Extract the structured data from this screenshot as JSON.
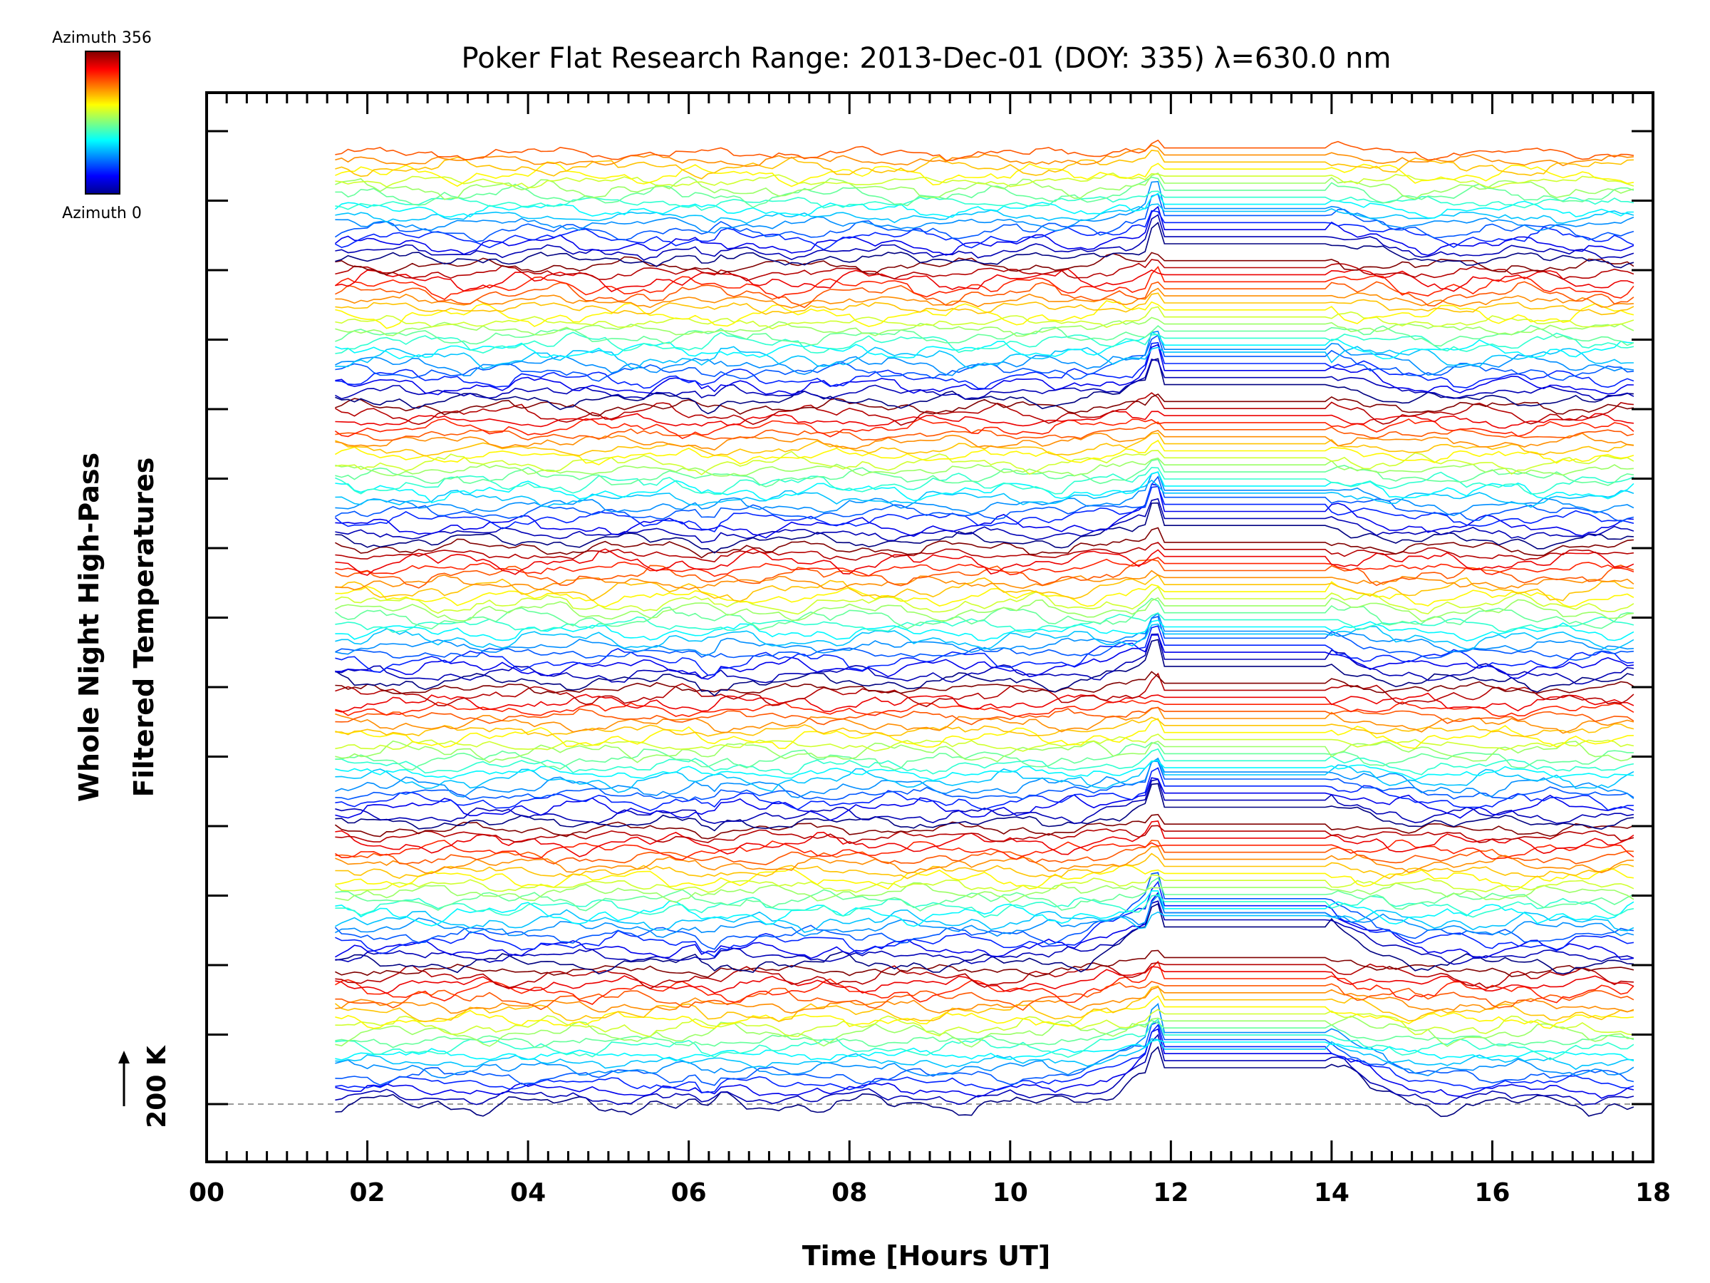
{
  "chart_data": {
    "type": "line",
    "title": "Poker Flat Research Range: 2013-Dec-01 (DOY: 335) λ=630.0 nm",
    "xlabel": "Time [Hours UT]",
    "ylabel_line1": "Whole Night High-Pass",
    "ylabel_line2": "Filtered Temperatures",
    "xlim": [
      0,
      18
    ],
    "x_ticks": [
      0,
      2,
      4,
      6,
      8,
      10,
      12,
      14,
      16,
      18
    ],
    "x_tick_labels": [
      "00",
      "02",
      "04",
      "06",
      "08",
      "10",
      "12",
      "14",
      "16",
      "18"
    ],
    "data_x_range": [
      1.6,
      17.8
    ],
    "scale_bar_label": "200 K",
    "colorbar": {
      "top_label": "Azimuth 356",
      "bottom_label": "Azimuth 0",
      "azimuth_range": [
        0,
        356
      ]
    },
    "stack": {
      "series_count": 136,
      "azimuth_cycle": 20,
      "gap_hours": [
        11.8,
        14.0
      ],
      "spike_hour": 11.8
    },
    "colors": {
      "axis": "#000000",
      "baseline": "#9a9a9a",
      "background": "#ffffff"
    }
  }
}
